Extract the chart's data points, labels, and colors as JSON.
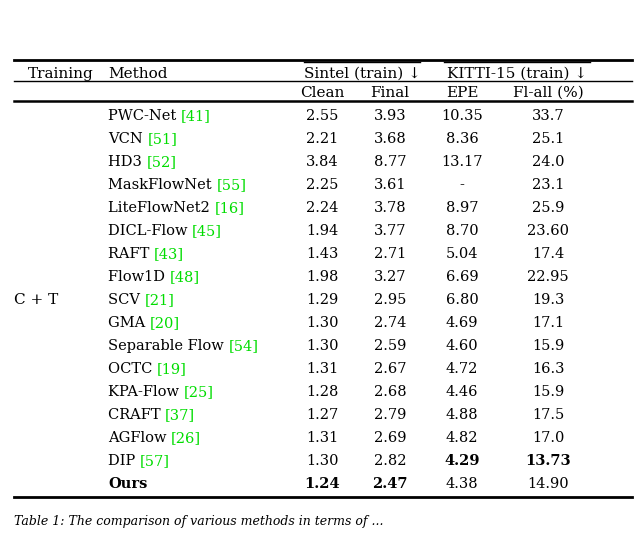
{
  "header_group1": "Sintel (train) ↓",
  "header_group2": "KITTI-15 (train) ↓",
  "col_training": "Training",
  "col_method": "Method",
  "sub_headers": [
    "Clean",
    "Final",
    "EPE",
    "Fl-all (%)"
  ],
  "training_label": "C + T",
  "rows": [
    {
      "method_text": "PWC-Net",
      "method_ref": "[41]",
      "clean": "2.55",
      "final": "3.93",
      "epe": "10.35",
      "flall": "33.7",
      "bold_clean": false,
      "bold_final": false,
      "bold_epe": false,
      "bold_flall": false
    },
    {
      "method_text": "VCN",
      "method_ref": "[51]",
      "clean": "2.21",
      "final": "3.68",
      "epe": "8.36",
      "flall": "25.1",
      "bold_clean": false,
      "bold_final": false,
      "bold_epe": false,
      "bold_flall": false
    },
    {
      "method_text": "HD3",
      "method_ref": "[52]",
      "clean": "3.84",
      "final": "8.77",
      "epe": "13.17",
      "flall": "24.0",
      "bold_clean": false,
      "bold_final": false,
      "bold_epe": false,
      "bold_flall": false
    },
    {
      "method_text": "MaskFlowNet",
      "method_ref": "[55]",
      "clean": "2.25",
      "final": "3.61",
      "epe": "-",
      "flall": "23.1",
      "bold_clean": false,
      "bold_final": false,
      "bold_epe": false,
      "bold_flall": false
    },
    {
      "method_text": "LiteFlowNet2",
      "method_ref": "[16]",
      "clean": "2.24",
      "final": "3.78",
      "epe": "8.97",
      "flall": "25.9",
      "bold_clean": false,
      "bold_final": false,
      "bold_epe": false,
      "bold_flall": false
    },
    {
      "method_text": "DICL-Flow",
      "method_ref": "[45]",
      "clean": "1.94",
      "final": "3.77",
      "epe": "8.70",
      "flall": "23.60",
      "bold_clean": false,
      "bold_final": false,
      "bold_epe": false,
      "bold_flall": false
    },
    {
      "method_text": "RAFT",
      "method_ref": "[43]",
      "clean": "1.43",
      "final": "2.71",
      "epe": "5.04",
      "flall": "17.4",
      "bold_clean": false,
      "bold_final": false,
      "bold_epe": false,
      "bold_flall": false
    },
    {
      "method_text": "Flow1D",
      "method_ref": "[48]",
      "clean": "1.98",
      "final": "3.27",
      "epe": "6.69",
      "flall": "22.95",
      "bold_clean": false,
      "bold_final": false,
      "bold_epe": false,
      "bold_flall": false
    },
    {
      "method_text": "SCV",
      "method_ref": "[21]",
      "clean": "1.29",
      "final": "2.95",
      "epe": "6.80",
      "flall": "19.3",
      "bold_clean": false,
      "bold_final": false,
      "bold_epe": false,
      "bold_flall": false
    },
    {
      "method_text": "GMA",
      "method_ref": "[20]",
      "clean": "1.30",
      "final": "2.74",
      "epe": "4.69",
      "flall": "17.1",
      "bold_clean": false,
      "bold_final": false,
      "bold_epe": false,
      "bold_flall": false
    },
    {
      "method_text": "Separable Flow",
      "method_ref": "[54]",
      "clean": "1.30",
      "final": "2.59",
      "epe": "4.60",
      "flall": "15.9",
      "bold_clean": false,
      "bold_final": false,
      "bold_epe": false,
      "bold_flall": false
    },
    {
      "method_text": "OCTC",
      "method_ref": "[19]",
      "clean": "1.31",
      "final": "2.67",
      "epe": "4.72",
      "flall": "16.3",
      "bold_clean": false,
      "bold_final": false,
      "bold_epe": false,
      "bold_flall": false
    },
    {
      "method_text": "KPA-Flow",
      "method_ref": "[25]",
      "clean": "1.28",
      "final": "2.68",
      "epe": "4.46",
      "flall": "15.9",
      "bold_clean": false,
      "bold_final": false,
      "bold_epe": false,
      "bold_flall": false
    },
    {
      "method_text": "CRAFT",
      "method_ref": "[37]",
      "clean": "1.27",
      "final": "2.79",
      "epe": "4.88",
      "flall": "17.5",
      "bold_clean": false,
      "bold_final": false,
      "bold_epe": false,
      "bold_flall": false
    },
    {
      "method_text": "AGFlow",
      "method_ref": "[26]",
      "clean": "1.31",
      "final": "2.69",
      "epe": "4.82",
      "flall": "17.0",
      "bold_clean": false,
      "bold_final": false,
      "bold_epe": false,
      "bold_flall": false
    },
    {
      "method_text": "DIP",
      "method_ref": "[57]",
      "clean": "1.30",
      "final": "2.82",
      "epe": "4.29",
      "flall": "13.73",
      "bold_clean": false,
      "bold_final": false,
      "bold_epe": true,
      "bold_flall": true
    },
    {
      "method_text": "Ours",
      "method_ref": "",
      "clean": "1.24",
      "final": "2.47",
      "epe": "4.38",
      "flall": "14.90",
      "bold_clean": true,
      "bold_final": true,
      "bold_epe": false,
      "bold_flall": false
    }
  ],
  "ref_color": "#00dd00",
  "text_color": "#000000",
  "bg_color": "#ffffff"
}
